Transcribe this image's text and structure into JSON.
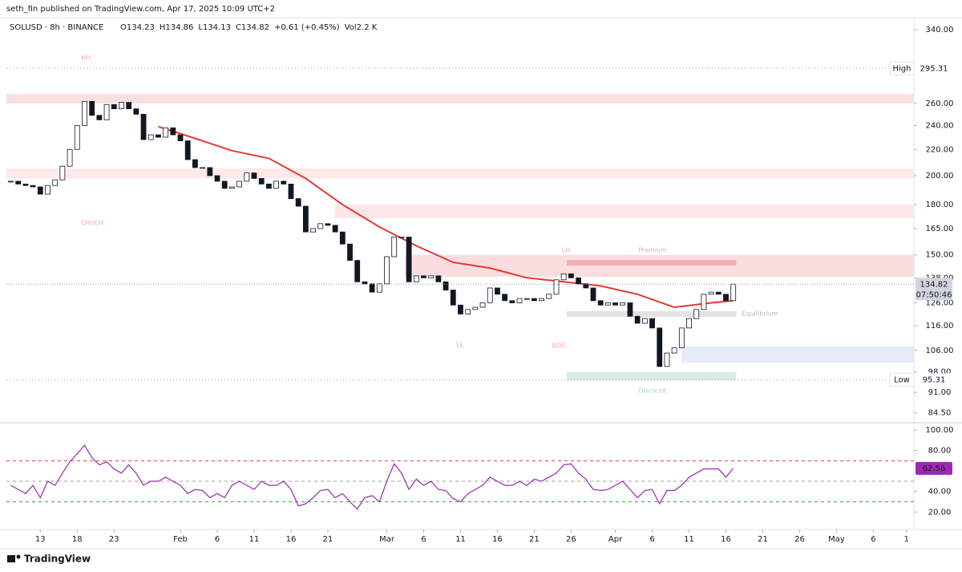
{
  "header": "seth_fin published on TradingView.com, Apr 17, 2025 10:09 UTC+2",
  "footer": "TradingView",
  "chart_data": [
    {
      "type": "candlestick",
      "symbol": "SOLUSD · 8h · BINANCE",
      "ohlc_labels": [
        "O134.23",
        "H134.86",
        "L134.13",
        "C134.82",
        "+0.61 (+0.45%)",
        "Vol2.2 K"
      ],
      "x": [
        8,
        9,
        10,
        11,
        12,
        13,
        14,
        15,
        16,
        17,
        18,
        19,
        20,
        21,
        22,
        23,
        24,
        25,
        26,
        27,
        28,
        29,
        30,
        31,
        32,
        33,
        34,
        35,
        36,
        37,
        38,
        39,
        40,
        41,
        42,
        43,
        44,
        45,
        46,
        47,
        48,
        49,
        50,
        51,
        52,
        53,
        54,
        55,
        56,
        57,
        58,
        59,
        60,
        61,
        62,
        63,
        64,
        65,
        66,
        67,
        68,
        69,
        70,
        71,
        72,
        73,
        74,
        75,
        76,
        77,
        78,
        79,
        80,
        81,
        82,
        83,
        84,
        85,
        86,
        87,
        88,
        89,
        90,
        91,
        92,
        93,
        94,
        95,
        96,
        97,
        98,
        99,
        100,
        101,
        102,
        103,
        104,
        105,
        106
      ],
      "values": [
        196,
        194,
        193,
        192,
        187,
        193,
        197,
        207,
        220,
        240,
        262,
        249,
        245,
        259,
        255,
        261,
        255,
        250,
        228,
        232,
        230,
        238,
        232,
        227,
        212,
        206,
        206,
        200,
        196,
        191,
        192,
        196,
        202,
        198,
        194,
        191,
        196,
        194,
        184,
        179,
        163,
        165,
        168,
        167,
        163,
        156,
        147,
        136,
        135,
        131,
        135,
        149,
        160,
        160,
        136,
        139,
        138,
        139,
        136,
        132,
        125,
        121,
        123,
        124,
        126,
        133,
        130,
        127,
        126,
        128,
        128,
        127,
        128,
        130,
        137,
        140,
        138,
        135,
        133,
        127,
        125,
        126,
        125,
        126,
        120,
        117,
        119,
        115,
        100,
        105,
        107,
        115,
        119,
        123,
        130,
        131,
        130,
        127,
        134.82
      ],
      "up_color": "#ffffff",
      "down_color": "#131722",
      "ma": {
        "color": "#e53935",
        "x": [
          28,
          33,
          38,
          43,
          48,
          53,
          58,
          63,
          68,
          73,
          78,
          83,
          88,
          93,
          98,
          103,
          106
        ],
        "values": [
          239,
          229,
          219,
          213,
          198,
          180,
          166,
          155,
          146,
          143,
          138,
          136,
          134,
          130,
          124,
          126,
          127
        ]
      },
      "zones": [
        {
          "from": 7.4,
          "to": 130.5,
          "top": 269,
          "bottom": 260,
          "color": "#f8d7d9"
        },
        {
          "from": 7.4,
          "to": 130.5,
          "top": 205.5,
          "bottom": 198,
          "color": "#fbe3e4"
        },
        {
          "from": 52,
          "to": 130.5,
          "top": 180,
          "bottom": 171.4,
          "color": "#fbe0e1"
        },
        {
          "from": 61.5,
          "to": 130.5,
          "top": 150,
          "bottom": 138.5,
          "color": "#fad5d7"
        },
        {
          "from": 83.4,
          "to": 106.4,
          "top": 147.2,
          "bottom": 144.3,
          "color": "#f2a6aa"
        },
        {
          "from": 83.4,
          "to": 106.4,
          "top": 122.3,
          "bottom": 119.7,
          "color": "#dcdcdc"
        },
        {
          "from": 99,
          "to": 130.5,
          "top": 107.5,
          "bottom": 101.4,
          "color": "#dde7f8"
        },
        {
          "from": 83.4,
          "to": 106.4,
          "top": 98,
          "bottom": 95.1,
          "color": "#cde9dc"
        }
      ],
      "annotations": [
        "HH",
        "CHoCH",
        "LH",
        "Premium",
        "Equilibrium",
        "LL",
        "BOS",
        "Discount"
      ],
      "high": {
        "label": "High",
        "value": 295.31
      },
      "low": {
        "label": "Low",
        "value": 95.31
      },
      "countdown": "07:50:46",
      "log_scale": true,
      "ylim": [
        81.5,
        352
      ],
      "yticks": [
        {
          "value": 340,
          "label": "340.00"
        },
        {
          "value": 260,
          "label": "260.00"
        },
        {
          "value": 240,
          "label": "240.00"
        },
        {
          "value": 220,
          "label": "220.00"
        },
        {
          "value": 200,
          "label": "200.00"
        },
        {
          "value": 180,
          "label": "180.00"
        },
        {
          "value": 165,
          "label": "165.00"
        },
        {
          "value": 150,
          "label": "150.00"
        },
        {
          "value": 138,
          "label": "138.00"
        },
        {
          "value": 126,
          "label": "126.00"
        },
        {
          "value": 116,
          "label": "116.00"
        },
        {
          "value": 106,
          "label": "106.00"
        },
        {
          "value": 98,
          "label": "98.00"
        },
        {
          "value": 91,
          "label": "91.00"
        },
        {
          "value": 84.5,
          "label": "84.50"
        }
      ],
      "xlim": [
        7.4,
        130.5
      ],
      "xticks": [
        {
          "value": 12,
          "label": "13"
        },
        {
          "value": 17,
          "label": "18"
        },
        {
          "value": 22,
          "label": "23"
        },
        {
          "value": 31,
          "label": "Feb"
        },
        {
          "value": 36,
          "label": "6"
        },
        {
          "value": 41,
          "label": "11"
        },
        {
          "value": 46,
          "label": "16"
        },
        {
          "value": 51,
          "label": "21"
        },
        {
          "value": 59,
          "label": "Mar"
        },
        {
          "value": 64,
          "label": "6"
        },
        {
          "value": 69,
          "label": "11"
        },
        {
          "value": 74,
          "label": "16"
        },
        {
          "value": 79,
          "label": "21"
        },
        {
          "value": 84,
          "label": "26"
        },
        {
          "value": 90,
          "label": "Apr"
        },
        {
          "value": 95,
          "label": "6"
        },
        {
          "value": 100,
          "label": "11"
        },
        {
          "value": 105,
          "label": "16"
        },
        {
          "value": 110,
          "label": "21"
        },
        {
          "value": 115,
          "label": "26"
        },
        {
          "value": 120,
          "label": "May"
        },
        {
          "value": 125,
          "label": "6"
        },
        {
          "value": 129.5,
          "label": "1"
        }
      ]
    },
    {
      "type": "line",
      "color": "#9c27b0",
      "x": [
        8,
        9,
        10,
        11,
        12,
        13,
        14,
        15,
        16,
        17,
        18,
        19,
        20,
        21,
        22,
        23,
        24,
        25,
        26,
        27,
        28,
        29,
        30,
        31,
        32,
        33,
        34,
        35,
        36,
        37,
        38,
        39,
        40,
        41,
        42,
        43,
        44,
        45,
        46,
        47,
        48,
        49,
        50,
        51,
        52,
        53,
        54,
        55,
        56,
        57,
        58,
        59,
        60,
        61,
        62,
        63,
        64,
        65,
        66,
        67,
        68,
        69,
        70,
        71,
        72,
        73,
        74,
        75,
        76,
        77,
        78,
        79,
        80,
        81,
        82,
        83,
        84,
        85,
        86,
        87,
        88,
        89,
        90,
        91,
        92,
        93,
        94,
        95,
        96,
        97,
        98,
        99,
        100,
        101,
        102,
        103,
        104,
        105,
        106
      ],
      "values": [
        46,
        42,
        38,
        46,
        34,
        50,
        46,
        58,
        69,
        77,
        85,
        73,
        66,
        69,
        62,
        58,
        66,
        58,
        46,
        50,
        50,
        54,
        50,
        46,
        38,
        42,
        41,
        34,
        38,
        34,
        46,
        50,
        46,
        42,
        50,
        46,
        46,
        50,
        42,
        26,
        28,
        34,
        41,
        42,
        34,
        38,
        30,
        23,
        34,
        36,
        30,
        50,
        67,
        58,
        42,
        52,
        46,
        50,
        42,
        41,
        33,
        30,
        38,
        42,
        46,
        54,
        50,
        46,
        46,
        50,
        46,
        52,
        50,
        54,
        58,
        66,
        67,
        58,
        52,
        42,
        41,
        42,
        46,
        50,
        42,
        34,
        41,
        42,
        28,
        41,
        41,
        46,
        54,
        58,
        62,
        62,
        62,
        54,
        62.56
      ],
      "levels": [
        {
          "value": 70,
          "color": "#e53935"
        },
        {
          "value": 50,
          "color": "#9e9e9e"
        },
        {
          "value": 30,
          "color": "#43a047"
        }
      ],
      "ylim": [
        3,
        107
      ],
      "yticks": [
        {
          "value": 100,
          "label": "100.00"
        },
        {
          "value": 80,
          "label": "80.00"
        },
        {
          "value": 40,
          "label": "40.00"
        },
        {
          "value": 20,
          "label": "20.00"
        }
      ]
    }
  ]
}
